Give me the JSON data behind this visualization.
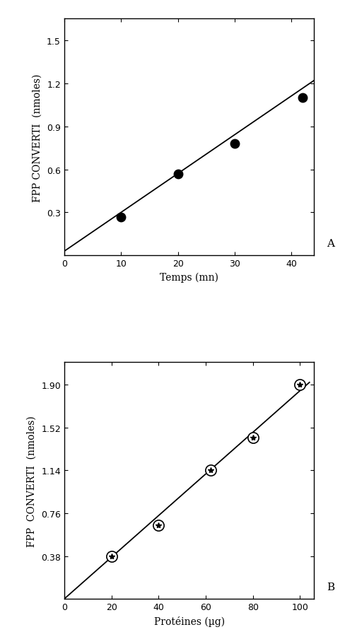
{
  "plot_A": {
    "xlabel": "Temps (mn)",
    "ylabel": "FPP CONVERTI  (nmoles)",
    "points_x": [
      10,
      20,
      30,
      42
    ],
    "points_y": [
      0.27,
      0.57,
      0.78,
      1.1
    ],
    "line_x": [
      0,
      44
    ],
    "line_y": [
      0.03,
      1.22
    ],
    "xlim": [
      0,
      44
    ],
    "ylim": [
      0,
      1.65
    ],
    "xticks": [
      0,
      10,
      20,
      30,
      40
    ],
    "yticks": [
      0.3,
      0.6,
      0.9,
      1.2,
      1.5
    ],
    "label": "A"
  },
  "plot_B": {
    "xlabel": "Protéines (µg)",
    "ylabel": "FPP  CONVERTI  (nmoles)",
    "points_x": [
      20,
      40,
      62,
      80,
      100
    ],
    "points_y": [
      0.38,
      0.65,
      1.14,
      1.43,
      1.9
    ],
    "line_x": [
      0,
      104
    ],
    "line_y": [
      0.0,
      1.92
    ],
    "xlim": [
      0,
      106
    ],
    "ylim": [
      0,
      2.1
    ],
    "xticks": [
      0,
      20,
      40,
      60,
      80,
      100
    ],
    "yticks": [
      0.38,
      0.76,
      1.14,
      1.52,
      1.9
    ],
    "label": "B"
  },
  "bg_color": "#ffffff",
  "line_color": "#000000",
  "fontsize_label": 10,
  "fontsize_tick": 9,
  "fontsize_panel": 11
}
